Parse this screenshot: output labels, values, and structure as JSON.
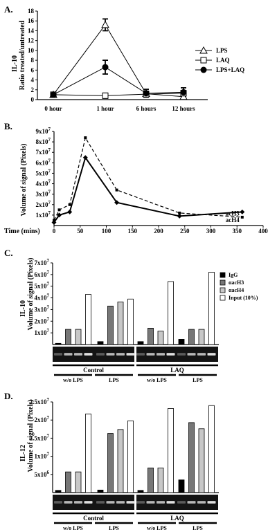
{
  "panels": [
    {
      "letter": "A."
    },
    {
      "letter": "B."
    },
    {
      "letter": "C."
    },
    {
      "letter": "D."
    }
  ],
  "chart_data": [
    {
      "id": "A",
      "type": "line",
      "ylabel_top": "IL-10",
      "ylabel": "Ratio treated/untreated",
      "categories": [
        "0 hour",
        "1 hour",
        "6 hours",
        "12 hours"
      ],
      "ylim": [
        0,
        18
      ],
      "yticks": [
        "0",
        "2",
        "4",
        "6",
        "8",
        "10",
        "12",
        "14",
        "16",
        "18"
      ],
      "legend_position": "right",
      "series": [
        {
          "name": "LPS",
          "marker": "triangle-open",
          "values": [
            1,
            15.2,
            1.2,
            0.6
          ],
          "errors": [
            0.2,
            1.2,
            0.5,
            0.5
          ]
        },
        {
          "name": "LAQ",
          "marker": "square-open",
          "values": [
            1,
            0.8,
            1.1,
            1.3
          ],
          "errors": [
            0.2,
            0.5,
            0.3,
            0.5
          ]
        },
        {
          "name": "LPS+LAQ",
          "marker": "circle-filled",
          "values": [
            1,
            6.6,
            1.3,
            1.5
          ],
          "errors": [
            0.2,
            1.4,
            0.8,
            0.9
          ]
        }
      ]
    },
    {
      "id": "B",
      "type": "line",
      "ylabel": "Volume of signal (Pixels)",
      "xlabel": "Time (mins)",
      "xlim": [
        0,
        400
      ],
      "xticks": [
        "0",
        "50",
        "100",
        "150",
        "200",
        "250",
        "300",
        "350",
        "400"
      ],
      "ylim": [
        0,
        90000000
      ],
      "ytick_mantissas": [
        "1",
        "2",
        "3",
        "4",
        "5",
        "6",
        "7",
        "8",
        "9"
      ],
      "ytick_exponent": "7",
      "series": [
        {
          "name": "acH3",
          "style": "solid",
          "marker": "diamond",
          "x": [
            0,
            10,
            30,
            60,
            120,
            240,
            360
          ],
          "y": [
            3000000,
            10000000,
            13000000,
            65000000,
            22000000,
            9000000,
            13000000
          ]
        },
        {
          "name": "acH4",
          "style": "dashed",
          "marker": "square",
          "x": [
            0,
            10,
            30,
            60,
            120,
            240,
            360
          ],
          "y": [
            5000000,
            15000000,
            20000000,
            84000000,
            34000000,
            12000000,
            8000000
          ]
        }
      ]
    },
    {
      "id": "C",
      "type": "bar",
      "ylabel_top": "IL-10",
      "ylabel": "Volume of signal (Pixels)",
      "ylim": [
        0,
        70000000
      ],
      "ytick_mantissas": [
        "1",
        "2",
        "3",
        "4",
        "5",
        "6",
        "7"
      ],
      "ytick_exponent": "7",
      "series_names": [
        "IgG",
        "αacH3",
        "αacH4",
        "Input (10%)"
      ],
      "groups": [
        {
          "values": [
            1000000,
            13000000,
            13000000,
            43000000
          ]
        },
        {
          "values": [
            2500000,
            33000000,
            36500000,
            39000000
          ]
        },
        {
          "values": [
            2500000,
            14000000,
            11500000,
            54000000
          ]
        },
        {
          "values": [
            4500000,
            13000000,
            13000000,
            62000000
          ]
        }
      ],
      "condition_labels": [
        "w/o LPS",
        "LPS",
        "w/o LPS",
        "LPS"
      ],
      "treatment_labels": [
        "Control",
        "LAQ"
      ]
    },
    {
      "id": "D",
      "type": "bar",
      "ylabel_top": "IL-12",
      "ylabel": "Volume of signal (Pixels)",
      "ylim": [
        0,
        25000000
      ],
      "yticks": [
        {
          "value": 5000000,
          "mantissa": "5",
          "exponent": "6"
        },
        {
          "value": 10000000,
          "mantissa": "1",
          "exponent": "7"
        },
        {
          "value": 15000000,
          "mantissa": "1.5",
          "exponent": "7"
        },
        {
          "value": 20000000,
          "mantissa": "2",
          "exponent": "7"
        },
        {
          "value": 25000000,
          "mantissa": "2.5",
          "exponent": "7"
        }
      ],
      "groups": [
        {
          "values": [
            600000,
            5700000,
            5700000,
            21700000
          ]
        },
        {
          "values": [
            700000,
            16300000,
            17400000,
            19800000
          ]
        },
        {
          "values": [
            600000,
            6800000,
            6800000,
            23200000
          ]
        },
        {
          "values": [
            3500000,
            19300000,
            17600000,
            24000000
          ]
        }
      ],
      "condition_labels": [
        "w/o LPS",
        "LPS",
        "w/o LPS",
        "LPS"
      ],
      "treatment_labels": [
        "Control",
        "LAQ"
      ]
    }
  ],
  "colors": {
    "IgG": "#000000",
    "acH3": "#777777",
    "acH4": "#c8c8c8",
    "input": "#ffffff"
  }
}
